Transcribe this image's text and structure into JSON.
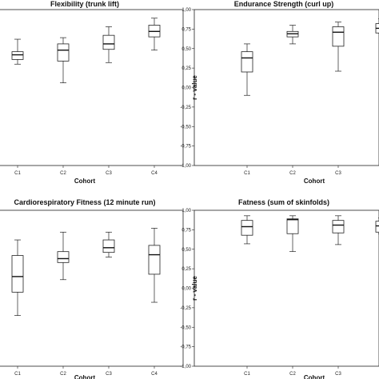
{
  "chart_data": [
    {
      "type": "box",
      "title": "Flexibility (trunk lift)",
      "xlabel": "Cohort",
      "ylabel": "",
      "ylim": [
        -1.0,
        1.0
      ],
      "yticks": [],
      "categories": [
        "C1",
        "C2",
        "C3",
        "C4"
      ],
      "boxes": [
        {
          "min": 0.3,
          "q1": 0.36,
          "median": 0.42,
          "q3": 0.46,
          "max": 0.62
        },
        {
          "min": 0.06,
          "q1": 0.34,
          "median": 0.48,
          "q3": 0.56,
          "max": 0.64
        },
        {
          "min": 0.32,
          "q1": 0.49,
          "median": 0.56,
          "q3": 0.67,
          "max": 0.78
        },
        {
          "min": 0.48,
          "q1": 0.65,
          "median": 0.72,
          "q3": 0.8,
          "max": 0.89
        }
      ]
    },
    {
      "type": "box",
      "title": "Endurance Strength (curl up)",
      "xlabel": "Cohort",
      "ylabel": "r - value",
      "ylim": [
        -1.0,
        1.0
      ],
      "yticks": [
        "1,00",
        "0,75",
        "0,50",
        "0,25",
        "0,00",
        "-0,25",
        "-0,50",
        "-0,75",
        "-1,00"
      ],
      "categories": [
        "C1",
        "C2",
        "C3",
        ""
      ],
      "boxes": [
        {
          "min": -0.1,
          "q1": 0.2,
          "median": 0.38,
          "q3": 0.46,
          "max": 0.56
        },
        {
          "min": 0.56,
          "q1": 0.65,
          "median": 0.69,
          "q3": 0.72,
          "max": 0.8
        },
        {
          "min": 0.21,
          "q1": 0.53,
          "median": 0.71,
          "q3": 0.78,
          "max": 0.84
        },
        {
          "min": 0.7,
          "q1": 0.7,
          "median": 0.76,
          "q3": 0.82,
          "max": 0.88
        }
      ]
    },
    {
      "type": "box",
      "title": "Cardiorespiratory Fitness (12 minute run)",
      "xlabel": "Cohort",
      "ylabel": "",
      "ylim": [
        -1.0,
        1.0
      ],
      "yticks": [],
      "categories": [
        "C1",
        "C2",
        "C3",
        "C4"
      ],
      "boxes": [
        {
          "min": -0.35,
          "q1": -0.05,
          "median": 0.15,
          "q3": 0.42,
          "max": 0.62
        },
        {
          "min": 0.11,
          "q1": 0.33,
          "median": 0.38,
          "q3": 0.47,
          "max": 0.72
        },
        {
          "min": 0.4,
          "q1": 0.46,
          "median": 0.52,
          "q3": 0.62,
          "max": 0.72
        },
        {
          "min": -0.18,
          "q1": 0.18,
          "median": 0.43,
          "q3": 0.55,
          "max": 0.77
        }
      ]
    },
    {
      "type": "box",
      "title": "Fatness (sum of skinfolds)",
      "xlabel": "Cohort",
      "ylabel": "r - value",
      "ylim": [
        -1.0,
        1.0
      ],
      "yticks": [
        "1,00",
        "0,75",
        "0,50",
        "0,25",
        "0,00",
        "-0,25",
        "-0,50",
        "-0,75",
        "-1,00"
      ],
      "categories": [
        "C1",
        "C2",
        "C3",
        ""
      ],
      "boxes": [
        {
          "min": 0.57,
          "q1": 0.68,
          "median": 0.79,
          "q3": 0.87,
          "max": 0.93
        },
        {
          "min": 0.47,
          "q1": 0.7,
          "median": 0.88,
          "q3": 0.89,
          "max": 0.93
        },
        {
          "min": 0.56,
          "q1": 0.71,
          "median": 0.81,
          "q3": 0.87,
          "max": 0.93
        },
        {
          "min": 0.7,
          "q1": 0.72,
          "median": 0.8,
          "q3": 0.86,
          "max": 0.9
        }
      ]
    }
  ]
}
